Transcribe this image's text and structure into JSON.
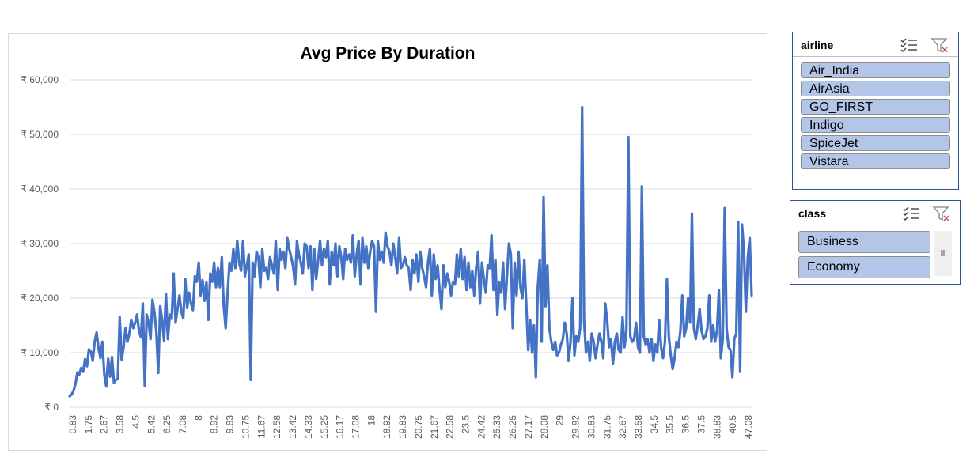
{
  "chart_data": {
    "type": "line",
    "title": "Avg Price By Duration",
    "xlabel": "",
    "ylabel": "",
    "ylim": [
      0,
      60000
    ],
    "grid": true,
    "y_tick_labels": [
      "₹ 0",
      "₹ 10,000",
      "₹ 20,000",
      "₹ 30,000",
      "₹ 40,000",
      "₹ 50,000",
      "₹ 60,000"
    ],
    "x_tick_labels": [
      "0.83",
      "1.75",
      "2.67",
      "3.58",
      "4.5",
      "5.42",
      "6.25",
      "7.08",
      "8",
      "8.92",
      "9.83",
      "10.75",
      "11.67",
      "12.58",
      "13.42",
      "14.33",
      "15.25",
      "16.17",
      "17.08",
      "18",
      "18.92",
      "19.83",
      "20.75",
      "21.67",
      "22.58",
      "23.5",
      "24.42",
      "25.33",
      "26.25",
      "27.17",
      "28.08",
      "29",
      "29.92",
      "30.83",
      "31.75",
      "32.67",
      "33.58",
      "34.5",
      "35.5",
      "36.5",
      "37.5",
      "38.83",
      "40.5",
      "47.08"
    ],
    "series": [
      {
        "name": "",
        "color": "#4472c4",
        "values": [
          2000,
          2300,
          3000,
          4200,
          6400,
          6000,
          7200,
          6500,
          8800,
          7500,
          10600,
          10300,
          8500,
          12000,
          13700,
          10800,
          9000,
          12000,
          6000,
          3800,
          8900,
          5600,
          9200,
          4500,
          5000,
          5200,
          16500,
          8700,
          11000,
          14500,
          12000,
          13500,
          16000,
          14500,
          15500,
          17000,
          14000,
          12800,
          19000,
          3900,
          17000,
          15500,
          12500,
          19700,
          17500,
          13800,
          6300,
          18500,
          16000,
          12200,
          20800,
          12500,
          17000,
          16200,
          24500,
          15500,
          18000,
          20500,
          17500,
          16300,
          23500,
          18200,
          21000,
          19000,
          17800,
          24000,
          23000,
          26500,
          20500,
          23300,
          19500,
          23000,
          16000,
          24500,
          23000,
          26500,
          22000,
          25500,
          22000,
          27500,
          18500,
          14500,
          21000,
          26500,
          25000,
          29000,
          25500,
          30500,
          26500,
          25000,
          30500,
          24000,
          26000,
          28000,
          5000,
          26500,
          24000,
          28500,
          27500,
          22000,
          29000,
          25000,
          25500,
          23500,
          27500,
          26000,
          24500,
          30500,
          21500,
          29000,
          27000,
          28500,
          25500,
          31000,
          29000,
          27500,
          25800,
          22500,
          30500,
          28000,
          26500,
          24500,
          30000,
          29500,
          25500,
          29500,
          21500,
          29000,
          23500,
          27000,
          30500,
          26000,
          29000,
          27500,
          30500,
          22500,
          28500,
          26000,
          30000,
          24000,
          29500,
          27500,
          23500,
          29000,
          27000,
          28000,
          26500,
          31500,
          24000,
          28000,
          30500,
          22500,
          31000,
          26500,
          29500,
          25500,
          28500,
          30500,
          29500,
          17500,
          30500,
          27000,
          28500,
          26500,
          32000,
          29500,
          28500,
          26000,
          30000,
          27500,
          24500,
          31000,
          25500,
          26000,
          27500,
          26000,
          25500,
          21500,
          27000,
          24500,
          28000,
          23000,
          28500,
          25500,
          24000,
          22000,
          26500,
          29000,
          20500,
          28000,
          23500,
          26000,
          21500,
          18000,
          26000,
          22000,
          24500,
          23000,
          20500,
          23000,
          22500,
          28000,
          24000,
          29000,
          23500,
          27500,
          21500,
          26500,
          22000,
          25000,
          20500,
          25500,
          28500,
          19000,
          26500,
          23500,
          21000,
          26000,
          25500,
          31500,
          21500,
          27000,
          17000,
          23000,
          21000,
          26500,
          18000,
          24000,
          30000,
          28000,
          14500,
          26500,
          20500,
          28500,
          22000,
          20000,
          27000,
          19000,
          10500,
          16000,
          10000,
          15000,
          5500,
          22000,
          27000,
          12000,
          38500,
          18500,
          26000,
          14500,
          12000,
          10500,
          12000,
          9500,
          10000,
          11500,
          12500,
          15500,
          13500,
          8500,
          12000,
          20000,
          9500,
          13000,
          12000,
          14500,
          55000,
          16000,
          10000,
          12000,
          8500,
          13500,
          12000,
          9000,
          11500,
          13500,
          12000,
          9000,
          19000,
          16000,
          11000,
          12500,
          8000,
          12000,
          13500,
          10500,
          10000,
          16500,
          11000,
          14000,
          49500,
          13000,
          12000,
          12500,
          15500,
          11000,
          10000,
          40500,
          13000,
          11500,
          12500,
          10000,
          12500,
          8500,
          11500,
          10000,
          16000,
          11000,
          9000,
          12000,
          23500,
          13000,
          9500,
          7000,
          9000,
          12000,
          11000,
          14000,
          20500,
          13000,
          14500,
          20000,
          15500,
          35500,
          14500,
          12500,
          15000,
          18000,
          14000,
          12500,
          13000,
          14500,
          20500,
          12000,
          15000,
          12000,
          14000,
          21500,
          9000,
          12500,
          36500,
          14500,
          11000,
          10500,
          5500,
          12500,
          13500,
          34000,
          6500,
          33500,
          28500,
          17500,
          27500,
          31000,
          20500
        ]
      }
    ]
  },
  "slicer_airline": {
    "title": "airline",
    "icon_multiselect": "multi-select-icon",
    "icon_clear": "clear-filter-icon",
    "items": [
      "Air_India",
      "AirAsia",
      "GO_FIRST",
      "Indigo",
      "SpiceJet",
      "Vistara"
    ]
  },
  "slicer_class": {
    "title": "class",
    "icon_multiselect": "multi-select-icon",
    "icon_clear": "clear-filter-icon",
    "items": [
      "Business",
      "Economy"
    ]
  }
}
